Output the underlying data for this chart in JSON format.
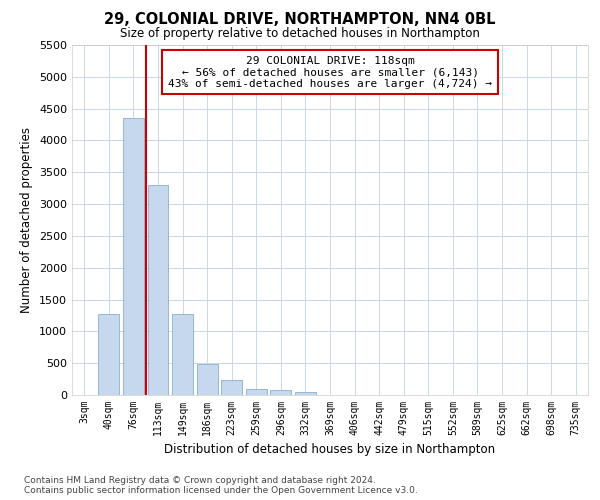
{
  "title1": "29, COLONIAL DRIVE, NORTHAMPTON, NN4 0BL",
  "title2": "Size of property relative to detached houses in Northampton",
  "xlabel": "Distribution of detached houses by size in Northampton",
  "ylabel": "Number of detached properties",
  "categories": [
    "3sqm",
    "40sqm",
    "76sqm",
    "113sqm",
    "149sqm",
    "186sqm",
    "223sqm",
    "259sqm",
    "296sqm",
    "332sqm",
    "369sqm",
    "406sqm",
    "442sqm",
    "479sqm",
    "515sqm",
    "552sqm",
    "589sqm",
    "625sqm",
    "662sqm",
    "698sqm",
    "735sqm"
  ],
  "values": [
    0,
    1280,
    4350,
    3300,
    1280,
    490,
    240,
    100,
    75,
    50,
    0,
    0,
    0,
    0,
    0,
    0,
    0,
    0,
    0,
    0,
    0
  ],
  "bar_color": "#c5d8ee",
  "bar_edge_color": "#8ab0d0",
  "vline_x": 2.5,
  "vline_color": "#cc0000",
  "annotation_line1": "29 COLONIAL DRIVE: 118sqm",
  "annotation_line2": "← 56% of detached houses are smaller (6,143)",
  "annotation_line3": "43% of semi-detached houses are larger (4,724) →",
  "ylim_max": 5500,
  "yticks": [
    0,
    500,
    1000,
    1500,
    2000,
    2500,
    3000,
    3500,
    4000,
    4500,
    5000,
    5500
  ],
  "footnote": "Contains HM Land Registry data © Crown copyright and database right 2024.\nContains public sector information licensed under the Open Government Licence v3.0.",
  "bg_color": "#ffffff",
  "plot_bg_color": "#ffffff",
  "grid_color": "#c8d8e8"
}
